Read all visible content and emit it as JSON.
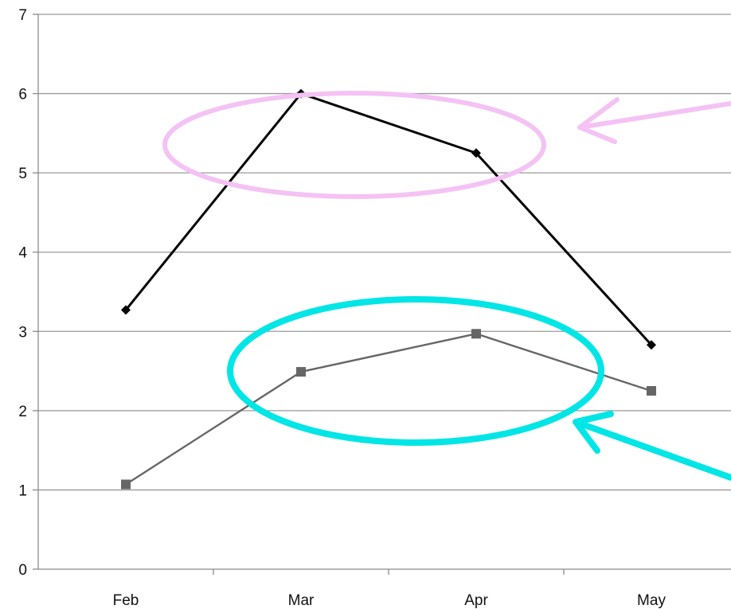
{
  "chart_data": {
    "type": "line",
    "title": "",
    "xlabel": "",
    "ylabel": "",
    "categories": [
      "Feb",
      "Mar",
      "Apr",
      "May"
    ],
    "ylim": [
      0,
      7
    ],
    "yticks": [
      0,
      1,
      2,
      3,
      4,
      5,
      6,
      7
    ],
    "grid": true,
    "legend": "none",
    "series": [
      {
        "values": [
          3.27,
          6.0,
          5.25,
          2.83
        ],
        "color": "#000000",
        "marker": "diamond"
      },
      {
        "values": [
          1.07,
          2.49,
          2.97,
          2.25
        ],
        "color": "#666666",
        "marker": "square"
      }
    ],
    "annotations": [
      {
        "shape": "ellipse-with-arrow",
        "color": "#f4c2f4",
        "highlights": "series 1, Mar to Apr"
      },
      {
        "shape": "ellipse-with-arrow",
        "color": "#00e5e5",
        "highlights": "series 2, Mar to Apr"
      }
    ]
  }
}
